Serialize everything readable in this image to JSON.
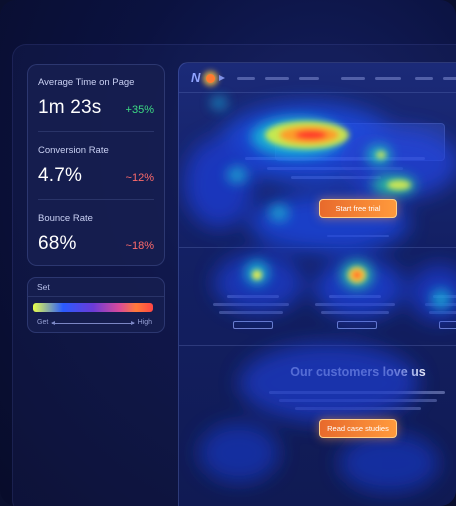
{
  "stats": [
    {
      "label": "Average Time on Page",
      "value": "1m 23s",
      "delta": "+35%",
      "trend": "up"
    },
    {
      "label": "Conversion Rate",
      "value": "4.7%",
      "delta": "~12%",
      "trend": "down"
    },
    {
      "label": "Bounce Rate",
      "value": "68%",
      "delta": "~18%",
      "trend": "down"
    }
  ],
  "legend": {
    "title": "Set",
    "low_label": "Get",
    "high_label": "High",
    "gradient": [
      "#e8ff4a",
      "#2a5bff",
      "#6a3bd8",
      "#d94a9a",
      "#ff7a3a",
      "#ff4545"
    ]
  },
  "site": {
    "logo_letter": "N",
    "cta_primary": "Start free trial",
    "section_title": "Our customers love us",
    "cta_secondary": "Read case studies"
  },
  "colors": {
    "positive": "#3ddc84",
    "negative": "#ff6b6b",
    "accent_orange": "#ff9a3c",
    "background": "#0a0f2e"
  }
}
